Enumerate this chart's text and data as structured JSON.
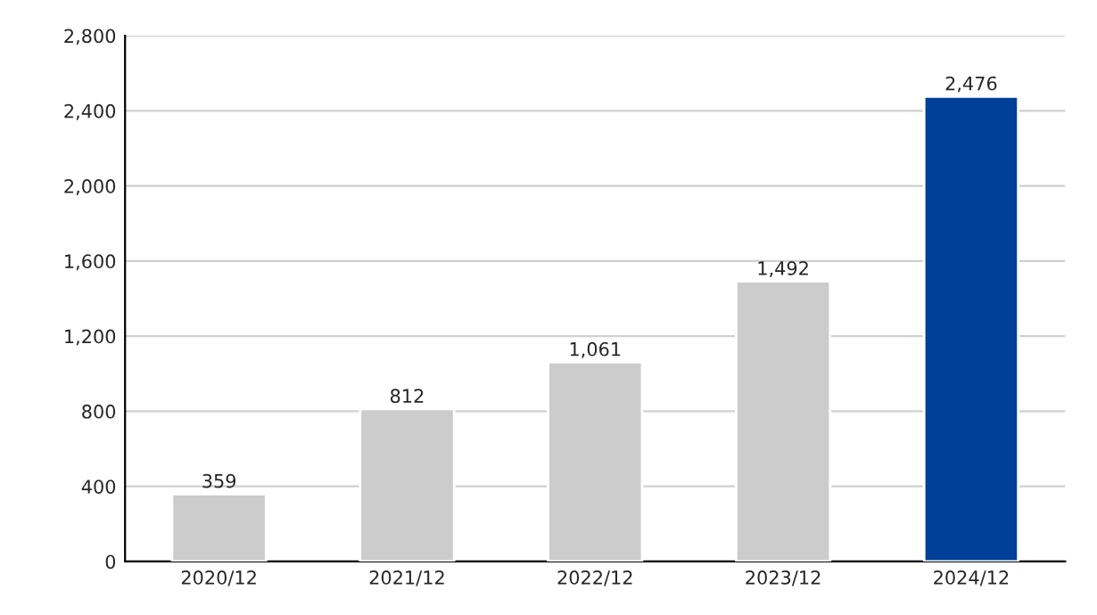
{
  "chart_data": {
    "type": "bar",
    "categories": [
      "2020/12",
      "2021/12",
      "2022/12",
      "2023/12",
      "2024/12"
    ],
    "values": [
      359,
      812,
      1061,
      1492,
      2476
    ],
    "colors": [
      "#cccccc",
      "#cccccc",
      "#cccccc",
      "#cccccc",
      "#004098"
    ],
    "value_labels": [
      "359",
      "812",
      "1,061",
      "1,492",
      "2,476"
    ],
    "ylim": [
      0,
      2800
    ],
    "yticks": [
      0,
      {
        "value": 400,
        "label": "400"
      },
      {
        "value": 800,
        "label": "800"
      },
      {
        "value": 1200,
        "label": "1,200"
      },
      {
        "value": 1600,
        "label": "1,600"
      },
      {
        "value": 2000,
        "label": "2,000"
      },
      {
        "value": 2400,
        "label": "2,400"
      },
      {
        "value": 2800,
        "label": "2,800"
      }
    ],
    "grid": "y"
  }
}
